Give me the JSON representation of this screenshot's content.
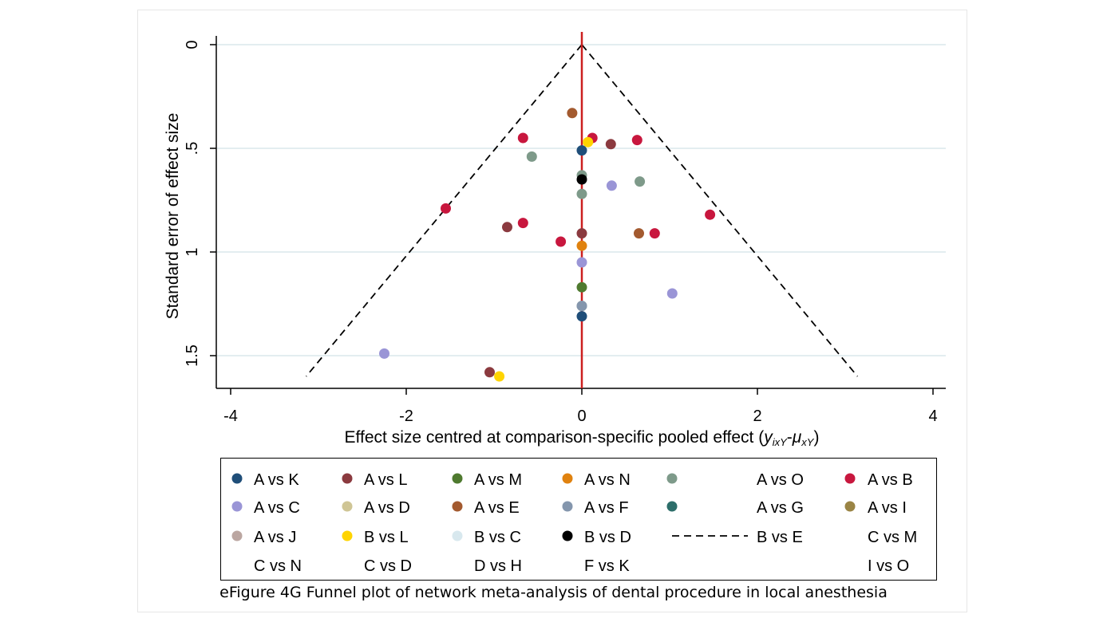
{
  "caption": "eFigure 4G Funnel plot of network meta-analysis of dental procedure in local anesthesia",
  "colors": {
    "A vs K": "#1f4e79",
    "A vs L": "#8b3a3f",
    "A vs M": "#4f7a2f",
    "A vs N": "#e0820f",
    "A vs O": "#7e9a8a",
    "A vs B": "#c8173e",
    "A vs C": "#9a95d6",
    "A vs D": "#cfc595",
    "A vs E": "#a35a2f",
    "A vs F": "#8496ad",
    "A vs G": "#2d6e6a",
    "A vs I": "#9a8445",
    "A vs J": "#bba6a1",
    "B vs L": "#ffd400",
    "B vs C": "#d8e8ee",
    "B vs D": "#000000",
    "null_line": "#cc1f1f",
    "gridline": "#e3edf0"
  },
  "chart_data": {
    "type": "scatter",
    "xlabel_main": "Effect size centred at comparison-specific pooled effect (",
    "xlabel_formula": "y",
    "xlabel_sub1": "ixY",
    "xlabel_dash": "-",
    "xlabel_mu": "μ",
    "xlabel_sub2": "xY",
    "xlabel_close": ")",
    "ylabel": "Standard error of effect size",
    "xlim": [
      -4,
      4
    ],
    "ylim": [
      0,
      1.6
    ],
    "y_reversed": true,
    "x_ticks": [
      {
        "value": -4,
        "label": "-4"
      },
      {
        "value": -2,
        "label": "-2"
      },
      {
        "value": 0,
        "label": "0"
      },
      {
        "value": 2,
        "label": "2"
      },
      {
        "value": 4,
        "label": "4"
      }
    ],
    "y_ticks": [
      {
        "value": 0,
        "label": "0"
      },
      {
        "value": 0.5,
        "label": ".5"
      },
      {
        "value": 1,
        "label": "1"
      },
      {
        "value": 1.5,
        "label": "1.5"
      }
    ],
    "grid": "horizontal",
    "null_line_x": 0,
    "funnel": {
      "apex": [
        0,
        0
      ],
      "base_y": 1.6,
      "base_half_width": 3.14,
      "style": "dashed"
    },
    "series": [
      {
        "name": "A vs K",
        "points": [
          [
            0,
            0.51
          ],
          [
            0,
            1.31
          ]
        ]
      },
      {
        "name": "A vs L",
        "points": [
          [
            0.33,
            0.48
          ],
          [
            -0.85,
            0.88
          ],
          [
            0,
            0.91
          ],
          [
            -1.05,
            1.58
          ]
        ]
      },
      {
        "name": "A vs M",
        "points": [
          [
            0,
            1.17
          ]
        ]
      },
      {
        "name": "A vs N",
        "points": [
          [
            0,
            0.97
          ]
        ]
      },
      {
        "name": "A vs O",
        "points": [
          [
            -0.57,
            0.54
          ],
          [
            0,
            0.63
          ],
          [
            0.66,
            0.66
          ],
          [
            0,
            0.72
          ],
          [
            0,
            1.26
          ]
        ]
      },
      {
        "name": "A vs B",
        "points": [
          [
            -0.67,
            0.45
          ],
          [
            0.12,
            0.45
          ],
          [
            0.63,
            0.46
          ],
          [
            -1.55,
            0.79
          ],
          [
            -0.67,
            0.86
          ],
          [
            1.46,
            0.82
          ],
          [
            0.83,
            0.91
          ],
          [
            -0.24,
            0.95
          ]
        ]
      },
      {
        "name": "A vs C",
        "points": [
          [
            0.34,
            0.68
          ],
          [
            0,
            1.05
          ],
          [
            1.03,
            1.2
          ],
          [
            -2.25,
            1.49
          ]
        ]
      },
      {
        "name": "A vs D",
        "points": []
      },
      {
        "name": "A vs E",
        "points": [
          [
            -0.11,
            0.33
          ],
          [
            0.65,
            0.91
          ]
        ]
      },
      {
        "name": "A vs F",
        "points": [
          [
            0,
            1.26
          ]
        ]
      },
      {
        "name": "A vs G",
        "points": []
      },
      {
        "name": "A vs I",
        "points": []
      },
      {
        "name": "A vs J",
        "points": []
      },
      {
        "name": "B vs L",
        "points": [
          [
            0.07,
            0.47
          ],
          [
            -0.94,
            1.6
          ]
        ]
      },
      {
        "name": "B vs C",
        "points": []
      },
      {
        "name": "B vs D",
        "points": [
          [
            0,
            0.65
          ]
        ]
      }
    ],
    "legend": {
      "placement": "bottom",
      "entries": [
        {
          "label": "A vs K",
          "marker": "dot",
          "color_key": "A vs K"
        },
        {
          "label": "A vs L",
          "marker": "dot",
          "color_key": "A vs L"
        },
        {
          "label": "A vs M",
          "marker": "dot",
          "color_key": "A vs M"
        },
        {
          "label": "A vs N",
          "marker": "dot",
          "color_key": "A vs N"
        },
        {
          "label": "A vs O",
          "marker": "dot",
          "color_key": "A vs O"
        },
        {
          "label": "A vs B",
          "marker": "dot",
          "color_key": "A vs B"
        },
        {
          "label": "A vs C",
          "marker": "dot",
          "color_key": "A vs C"
        },
        {
          "label": "A vs D",
          "marker": "dot",
          "color_key": "A vs D"
        },
        {
          "label": "A vs E",
          "marker": "dot",
          "color_key": "A vs E"
        },
        {
          "label": "A vs F",
          "marker": "dot",
          "color_key": "A vs F"
        },
        {
          "label": "A vs G",
          "marker": "dot",
          "color_key": "A vs G"
        },
        {
          "label": "A vs I",
          "marker": "dot",
          "color_key": "A vs I"
        },
        {
          "label": "A vs J",
          "marker": "dot",
          "color_key": "A vs J"
        },
        {
          "label": "B vs L",
          "marker": "dot",
          "color_key": "B vs L"
        },
        {
          "label": "B vs C",
          "marker": "dot",
          "color_key": "B vs C"
        },
        {
          "label": "B vs D",
          "marker": "dot",
          "color_key": "B vs D"
        },
        {
          "label": "B vs E",
          "marker": "dashed-line",
          "color_key": ""
        },
        {
          "label": "C vs M",
          "marker": "none",
          "color_key": ""
        },
        {
          "label": "C vs N",
          "marker": "none",
          "color_key": ""
        },
        {
          "label": "C vs D",
          "marker": "none",
          "color_key": ""
        },
        {
          "label": "D vs H",
          "marker": "none",
          "color_key": ""
        },
        {
          "label": "F vs K",
          "marker": "none",
          "color_key": ""
        },
        {
          "label": "",
          "marker": "none",
          "color_key": ""
        },
        {
          "label": "I vs O",
          "marker": "none",
          "color_key": ""
        }
      ]
    }
  }
}
